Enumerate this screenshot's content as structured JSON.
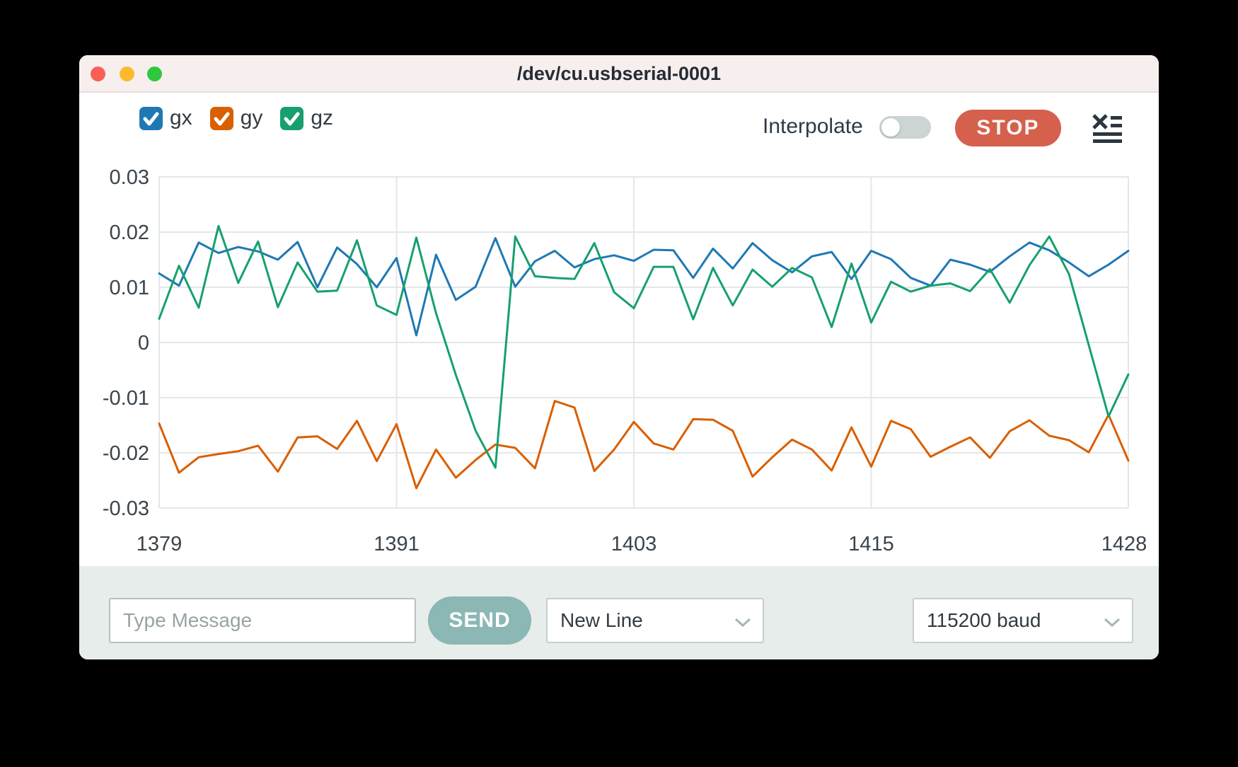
{
  "window": {
    "title": "/dev/cu.usbserial-0001"
  },
  "titlebar": {
    "buttons": [
      "close-button",
      "minimize-button",
      "zoom-button"
    ]
  },
  "legend": {
    "items": [
      {
        "label": "gx",
        "checked": true,
        "color": "#1f78b4"
      },
      {
        "label": "gy",
        "checked": true,
        "color": "#d95f02"
      },
      {
        "label": "gz",
        "checked": true,
        "color": "#17a06e"
      }
    ]
  },
  "toolbar": {
    "interpolate_label": "Interpolate",
    "interpolate_on": false,
    "stop_label": "STOP"
  },
  "icons": {
    "clear": "clear-log-icon",
    "dropdown": "chevron-down-icon",
    "legend_check": "checkmark-icon"
  },
  "colors": {
    "accent_stop": "#d5604c",
    "accent_send": "#8bb7b5",
    "grid": "#e4e7e8",
    "tick_text": "#3a444c",
    "titlebar_bg": "#f6efee",
    "bottombar_bg": "#e7edeb"
  },
  "chart_data": {
    "type": "line",
    "title": "",
    "xlabel": "",
    "ylabel": "",
    "x_start": 1379,
    "x_end": 1428,
    "ylim": [
      -0.03,
      0.03
    ],
    "grid": true,
    "legend_position": "top-left-checkboxes",
    "yticks": [
      {
        "label": "0.03",
        "value": 0.03
      },
      {
        "label": "0.02",
        "value": 0.02
      },
      {
        "label": "0.01",
        "value": 0.01
      },
      {
        "label": "0",
        "value": 0
      },
      {
        "label": "-0.01",
        "value": -0.01
      },
      {
        "label": "-0.02",
        "value": -0.02
      },
      {
        "label": "-0.03",
        "value": -0.03
      }
    ],
    "xticks": [
      {
        "label": "1379",
        "index": 0
      },
      {
        "label": "1391",
        "index": 12
      },
      {
        "label": "1403",
        "index": 24
      },
      {
        "label": "1415",
        "index": 36
      },
      {
        "label": "1428",
        "index": 49
      }
    ],
    "series": [
      {
        "name": "gx",
        "color": "#1f78b4",
        "values": [
          0.0125,
          0.0103,
          0.0181,
          0.0162,
          0.0173,
          0.0165,
          0.015,
          0.0182,
          0.01,
          0.0172,
          0.0142,
          0.01,
          0.0153,
          0.0013,
          0.0159,
          0.0077,
          0.0101,
          0.0189,
          0.0101,
          0.0147,
          0.0166,
          0.0136,
          0.0151,
          0.0158,
          0.0148,
          0.0168,
          0.0167,
          0.0117,
          0.017,
          0.0134,
          0.018,
          0.0149,
          0.0127,
          0.0156,
          0.0164,
          0.0115,
          0.0166,
          0.0151,
          0.0117,
          0.0103,
          0.015,
          0.0141,
          0.0128,
          0.0156,
          0.0181,
          0.0167,
          0.0145,
          0.012,
          0.0141,
          0.0166
        ]
      },
      {
        "name": "gy",
        "color": "#d95f02",
        "values": [
          -0.0147,
          -0.0236,
          -0.0208,
          -0.0202,
          -0.0197,
          -0.0187,
          -0.0234,
          -0.0172,
          -0.017,
          -0.0193,
          -0.0142,
          -0.0215,
          -0.0148,
          -0.0264,
          -0.0194,
          -0.0245,
          -0.0213,
          -0.0185,
          -0.0191,
          -0.0228,
          -0.0106,
          -0.0118,
          -0.0233,
          -0.0194,
          -0.0144,
          -0.0183,
          -0.0194,
          -0.0139,
          -0.014,
          -0.016,
          -0.0243,
          -0.0208,
          -0.0176,
          -0.0194,
          -0.0232,
          -0.0154,
          -0.0225,
          -0.0142,
          -0.0157,
          -0.0207,
          -0.0189,
          -0.0172,
          -0.0209,
          -0.0161,
          -0.0141,
          -0.0169,
          -0.0177,
          -0.0199,
          -0.0131,
          -0.0214
        ]
      },
      {
        "name": "gz",
        "color": "#17a06e",
        "values": [
          0.0043,
          0.0139,
          0.0063,
          0.0211,
          0.0108,
          0.0183,
          0.0064,
          0.0145,
          0.0092,
          0.0094,
          0.0185,
          0.0067,
          0.005,
          0.019,
          0.0053,
          -0.0059,
          -0.016,
          -0.0227,
          0.0192,
          0.012,
          0.0117,
          0.0115,
          0.018,
          0.0091,
          0.0062,
          0.0137,
          0.0137,
          0.0042,
          0.0135,
          0.0067,
          0.0132,
          0.0101,
          0.0135,
          0.0118,
          0.0028,
          0.0143,
          0.0036,
          0.011,
          0.0092,
          0.0103,
          0.0107,
          0.0093,
          0.0133,
          0.0072,
          0.014,
          0.0192,
          0.0124,
          -0.0005,
          -0.0134,
          -0.0058
        ]
      }
    ]
  },
  "composer": {
    "placeholder": "Type Message",
    "value": "",
    "send_label": "SEND",
    "line_ending": "New Line",
    "baud": "115200 baud"
  }
}
